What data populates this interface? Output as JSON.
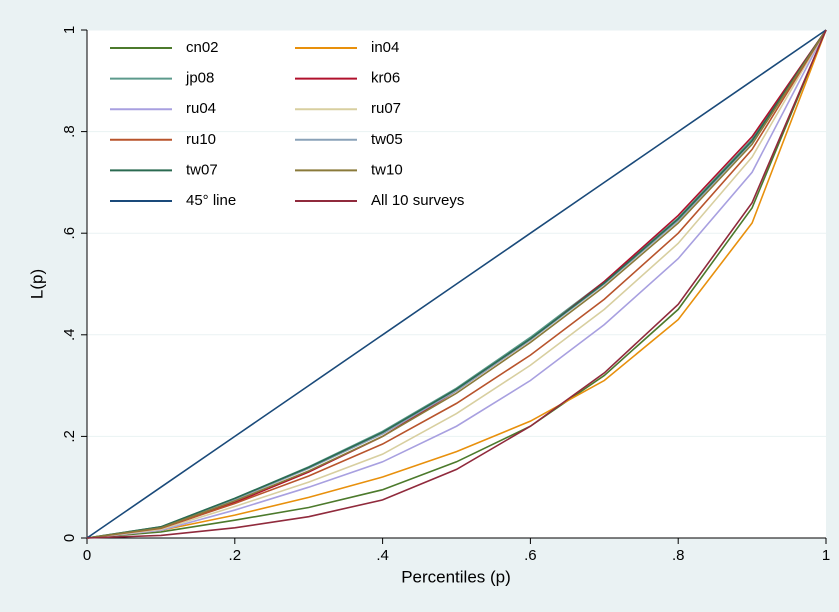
{
  "chart_data": {
    "type": "line",
    "xlabel": "Percentiles (p)",
    "ylabel": "L(p)",
    "x": [
      0,
      0.1,
      0.2,
      0.3,
      0.4,
      0.5,
      0.6,
      0.7,
      0.8,
      0.9,
      1
    ],
    "xlim": [
      0,
      1
    ],
    "ylim": [
      0,
      1
    ],
    "xticks": [
      0,
      {
        "value": 0.2,
        "label": ".2"
      },
      {
        "value": 0.4,
        "label": ".4"
      },
      {
        "value": 0.6,
        "label": ".6"
      },
      {
        "value": 0.8,
        "label": ".8"
      },
      1
    ],
    "yticks": [
      0,
      {
        "value": 0.2,
        "label": ".2"
      },
      {
        "value": 0.4,
        "label": ".4"
      },
      {
        "value": 0.6,
        "label": ".6"
      },
      {
        "value": 0.8,
        "label": ".8"
      },
      1
    ],
    "grid": true,
    "legend": "top-left",
    "series": [
      {
        "name": "cn02",
        "color": "#4c7a2c",
        "values": [
          0,
          0.012,
          0.035,
          0.06,
          0.095,
          0.15,
          0.22,
          0.32,
          0.45,
          0.65,
          1
        ]
      },
      {
        "name": "in04",
        "color": "#e8900c",
        "values": [
          0,
          0.015,
          0.045,
          0.08,
          0.12,
          0.17,
          0.23,
          0.31,
          0.43,
          0.62,
          1
        ]
      },
      {
        "name": "jp08",
        "color": "#5c9a8c",
        "values": [
          0,
          0.022,
          0.078,
          0.14,
          0.21,
          0.295,
          0.395,
          0.505,
          0.63,
          0.785,
          1
        ]
      },
      {
        "name": "kr06",
        "color": "#b0102c",
        "values": [
          0,
          0.018,
          0.07,
          0.13,
          0.2,
          0.29,
          0.39,
          0.505,
          0.635,
          0.79,
          1
        ]
      },
      {
        "name": "ru04",
        "color": "#a8a0e0",
        "values": [
          0,
          0.015,
          0.055,
          0.1,
          0.15,
          0.22,
          0.31,
          0.42,
          0.55,
          0.72,
          1
        ]
      },
      {
        "name": "ru07",
        "color": "#d8cfa0",
        "values": [
          0,
          0.017,
          0.062,
          0.11,
          0.165,
          0.245,
          0.34,
          0.45,
          0.58,
          0.75,
          1
        ]
      },
      {
        "name": "ru10",
        "color": "#b8542c",
        "values": [
          0,
          0.019,
          0.068,
          0.122,
          0.185,
          0.265,
          0.36,
          0.47,
          0.6,
          0.765,
          1
        ]
      },
      {
        "name": "tw05",
        "color": "#8aa2b8",
        "values": [
          0,
          0.021,
          0.076,
          0.137,
          0.205,
          0.29,
          0.39,
          0.5,
          0.625,
          0.78,
          1
        ]
      },
      {
        "name": "tw07",
        "color": "#2a6a50",
        "values": [
          0,
          0.022,
          0.078,
          0.139,
          0.208,
          0.293,
          0.392,
          0.502,
          0.628,
          0.782,
          1
        ]
      },
      {
        "name": "tw10",
        "color": "#8a7a3a",
        "values": [
          0,
          0.02,
          0.073,
          0.132,
          0.2,
          0.285,
          0.385,
          0.495,
          0.62,
          0.775,
          1
        ]
      },
      {
        "name": "45° line",
        "color": "#1a4a7a",
        "values": [
          0,
          0.1,
          0.2,
          0.3,
          0.4,
          0.5,
          0.6,
          0.7,
          0.8,
          0.9,
          1
        ]
      },
      {
        "name": "All 10 surveys",
        "color": "#902a3c",
        "values": [
          0,
          0.005,
          0.02,
          0.042,
          0.075,
          0.135,
          0.22,
          0.325,
          0.46,
          0.66,
          1
        ]
      }
    ]
  }
}
